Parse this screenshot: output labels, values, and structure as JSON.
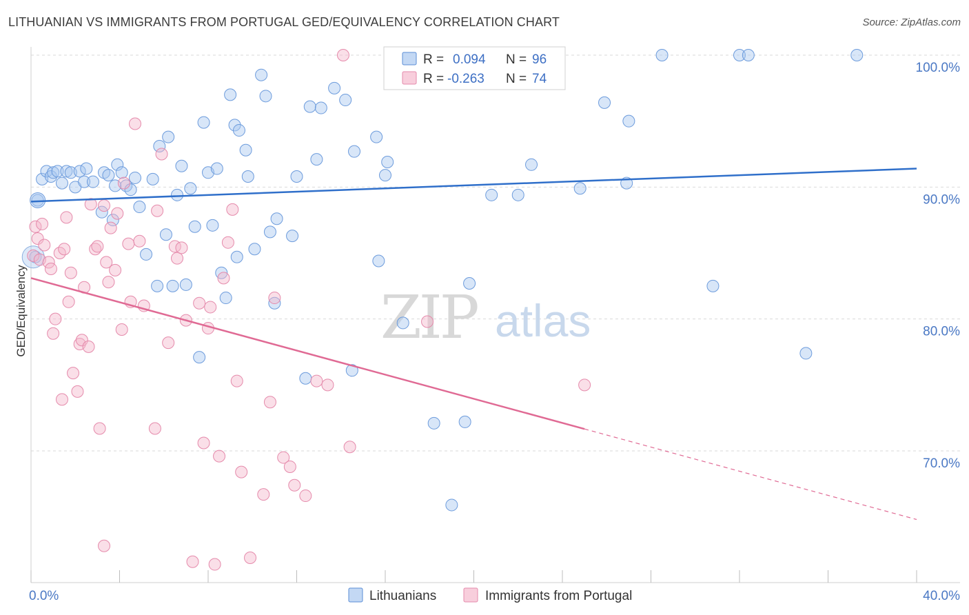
{
  "title": "LITHUANIAN VS IMMIGRANTS FROM PORTUGAL GED/EQUIVALENCY CORRELATION CHART",
  "source": "Source: ZipAtlas.com",
  "watermark": {
    "zip": "ZIP",
    "atlas": "atlas"
  },
  "colors": {
    "blue": "#2f6fca",
    "blue_fill": "#a9c8ef",
    "pink": "#e06a94",
    "pink_fill": "#f5b9cd",
    "grid": "#d9d9d9"
  },
  "chart_data": {
    "type": "scatter",
    "title": "LITHUANIAN VS IMMIGRANTS FROM PORTUGAL GED/EQUIVALENCY CORRELATION CHART",
    "xlabel": "",
    "ylabel": "GED/Equivalency",
    "xlim": [
      0,
      40
    ],
    "ylim": [
      60,
      101
    ],
    "x_tick_labels": [
      "0.0%",
      "40.0%"
    ],
    "y_ticks": [
      70,
      80,
      90,
      100
    ],
    "y_tick_labels": [
      "70.0%",
      "80.0%",
      "90.0%",
      "100.0%"
    ],
    "grid": true,
    "legend_position": "top-center",
    "legend": [
      {
        "r_label": "R =",
        "r_value": "0.094",
        "n_label": "N =",
        "n_value": "96"
      },
      {
        "r_label": "R =",
        "r_value": "-0.263",
        "n_label": "N =",
        "n_value": "74"
      }
    ],
    "series": [
      {
        "name": "Lithuanians",
        "color": "#2f6fca",
        "trend": {
          "x0": 0,
          "y0": 88.9,
          "x1": 40,
          "y1": 91.4,
          "solid_until": 40
        },
        "points": [
          [
            0.3,
            89.0
          ],
          [
            0.5,
            90.6
          ],
          [
            0.7,
            91.2
          ],
          [
            0.9,
            90.8
          ],
          [
            1.0,
            91.1
          ],
          [
            1.2,
            91.2
          ],
          [
            1.4,
            90.3
          ],
          [
            1.6,
            91.2
          ],
          [
            1.8,
            91.1
          ],
          [
            2.0,
            90.0
          ],
          [
            2.2,
            91.2
          ],
          [
            2.4,
            90.4
          ],
          [
            2.5,
            91.4
          ],
          [
            2.8,
            90.4
          ],
          [
            3.2,
            88.1
          ],
          [
            3.3,
            91.1
          ],
          [
            3.5,
            90.9
          ],
          [
            3.7,
            87.5
          ],
          [
            3.9,
            91.7
          ],
          [
            4.1,
            91.1
          ],
          [
            4.3,
            90.1
          ],
          [
            4.5,
            89.8
          ],
          [
            4.7,
            90.7
          ],
          [
            4.9,
            88.5
          ],
          [
            5.2,
            84.9
          ],
          [
            5.5,
            90.6
          ],
          [
            5.7,
            82.5
          ],
          [
            5.8,
            93.1
          ],
          [
            6.1,
            86.4
          ],
          [
            6.2,
            93.8
          ],
          [
            6.4,
            82.5
          ],
          [
            6.6,
            89.4
          ],
          [
            6.8,
            91.6
          ],
          [
            7.0,
            82.6
          ],
          [
            7.2,
            89.9
          ],
          [
            7.4,
            87.0
          ],
          [
            7.6,
            77.1
          ],
          [
            7.8,
            94.9
          ],
          [
            8.0,
            91.1
          ],
          [
            8.2,
            87.1
          ],
          [
            8.4,
            91.4
          ],
          [
            8.6,
            83.5
          ],
          [
            8.8,
            81.6
          ],
          [
            9.0,
            97.0
          ],
          [
            9.2,
            94.7
          ],
          [
            9.3,
            84.7
          ],
          [
            9.4,
            94.3
          ],
          [
            9.7,
            92.8
          ],
          [
            9.8,
            90.8
          ],
          [
            10.1,
            85.3
          ],
          [
            10.4,
            98.5
          ],
          [
            10.6,
            96.9
          ],
          [
            10.8,
            86.6
          ],
          [
            11.0,
            81.2
          ],
          [
            11.1,
            87.6
          ],
          [
            11.8,
            86.3
          ],
          [
            12.0,
            90.8
          ],
          [
            12.4,
            75.5
          ],
          [
            12.6,
            96.1
          ],
          [
            12.9,
            92.1
          ],
          [
            13.1,
            96.0
          ],
          [
            13.7,
            97.5
          ],
          [
            14.2,
            96.6
          ],
          [
            14.5,
            76.1
          ],
          [
            14.6,
            92.7
          ],
          [
            15.6,
            93.8
          ],
          [
            15.7,
            84.4
          ],
          [
            16.0,
            90.9
          ],
          [
            16.1,
            91.9
          ],
          [
            16.8,
            79.7
          ],
          [
            18.2,
            72.1
          ],
          [
            18.3,
            100.0
          ],
          [
            19.6,
            72.2
          ],
          [
            19.8,
            82.7
          ],
          [
            20.8,
            89.4
          ],
          [
            21.0,
            100.0
          ],
          [
            21.6,
            98.2
          ],
          [
            22.0,
            89.4
          ],
          [
            22.6,
            91.7
          ],
          [
            23.1,
            100.0
          ],
          [
            23.8,
            100.0
          ],
          [
            24.8,
            89.9
          ],
          [
            25.9,
            96.4
          ],
          [
            26.9,
            90.3
          ],
          [
            27.0,
            95.0
          ],
          [
            28.5,
            100.0
          ],
          [
            30.8,
            82.5
          ],
          [
            32.0,
            100.0
          ],
          [
            32.4,
            100.0
          ],
          [
            35.0,
            77.4
          ],
          [
            37.3,
            100.0
          ],
          [
            0.2,
            84.7
          ],
          [
            19.0,
            65.9
          ],
          [
            3.8,
            90.1
          ]
        ]
      },
      {
        "name": "Immigrants from Portugal",
        "color": "#e06a94",
        "trend": {
          "x0": 0,
          "y0": 83.1,
          "x1": 40,
          "y1": 64.8,
          "solid_until": 25.0
        },
        "points": [
          [
            0.1,
            84.8
          ],
          [
            0.2,
            87.0
          ],
          [
            0.3,
            86.1
          ],
          [
            0.4,
            84.5
          ],
          [
            0.5,
            87.2
          ],
          [
            0.6,
            85.6
          ],
          [
            0.8,
            84.3
          ],
          [
            0.9,
            83.8
          ],
          [
            1.0,
            78.9
          ],
          [
            1.1,
            80.0
          ],
          [
            1.3,
            85.0
          ],
          [
            1.4,
            73.9
          ],
          [
            1.5,
            85.3
          ],
          [
            1.6,
            87.7
          ],
          [
            1.7,
            81.3
          ],
          [
            1.8,
            83.5
          ],
          [
            1.9,
            75.9
          ],
          [
            2.1,
            74.5
          ],
          [
            2.2,
            78.1
          ],
          [
            2.3,
            78.4
          ],
          [
            2.4,
            82.4
          ],
          [
            2.6,
            77.9
          ],
          [
            2.7,
            88.7
          ],
          [
            2.9,
            85.3
          ],
          [
            3.0,
            85.5
          ],
          [
            3.1,
            71.7
          ],
          [
            3.3,
            88.6
          ],
          [
            3.4,
            84.3
          ],
          [
            3.5,
            82.8
          ],
          [
            3.6,
            86.9
          ],
          [
            3.8,
            83.7
          ],
          [
            3.9,
            88.0
          ],
          [
            4.1,
            79.2
          ],
          [
            4.2,
            90.3
          ],
          [
            4.4,
            85.7
          ],
          [
            4.5,
            81.3
          ],
          [
            4.7,
            94.8
          ],
          [
            4.9,
            85.9
          ],
          [
            5.1,
            81.0
          ],
          [
            5.6,
            71.7
          ],
          [
            5.7,
            88.2
          ],
          [
            5.9,
            92.5
          ],
          [
            6.2,
            78.2
          ],
          [
            6.5,
            85.5
          ],
          [
            6.6,
            84.6
          ],
          [
            6.8,
            85.4
          ],
          [
            7.0,
            79.9
          ],
          [
            7.3,
            61.6
          ],
          [
            7.6,
            81.2
          ],
          [
            7.8,
            70.6
          ],
          [
            8.0,
            79.3
          ],
          [
            8.1,
            80.9
          ],
          [
            8.3,
            61.4
          ],
          [
            8.5,
            69.6
          ],
          [
            8.7,
            83.1
          ],
          [
            8.9,
            85.8
          ],
          [
            9.1,
            88.3
          ],
          [
            9.3,
            75.3
          ],
          [
            9.5,
            68.4
          ],
          [
            9.9,
            61.9
          ],
          [
            10.5,
            66.7
          ],
          [
            10.8,
            73.7
          ],
          [
            11.0,
            81.6
          ],
          [
            11.4,
            69.5
          ],
          [
            11.7,
            68.8
          ],
          [
            11.9,
            67.4
          ],
          [
            12.4,
            66.6
          ],
          [
            12.9,
            75.3
          ],
          [
            13.4,
            75.0
          ],
          [
            14.4,
            70.3
          ],
          [
            14.1,
            100.0
          ],
          [
            17.9,
            79.8
          ],
          [
            25.0,
            75.0
          ],
          [
            3.3,
            62.8
          ]
        ]
      }
    ]
  },
  "bottom_legend": [
    "Lithuanians",
    "Immigrants from Portugal"
  ]
}
